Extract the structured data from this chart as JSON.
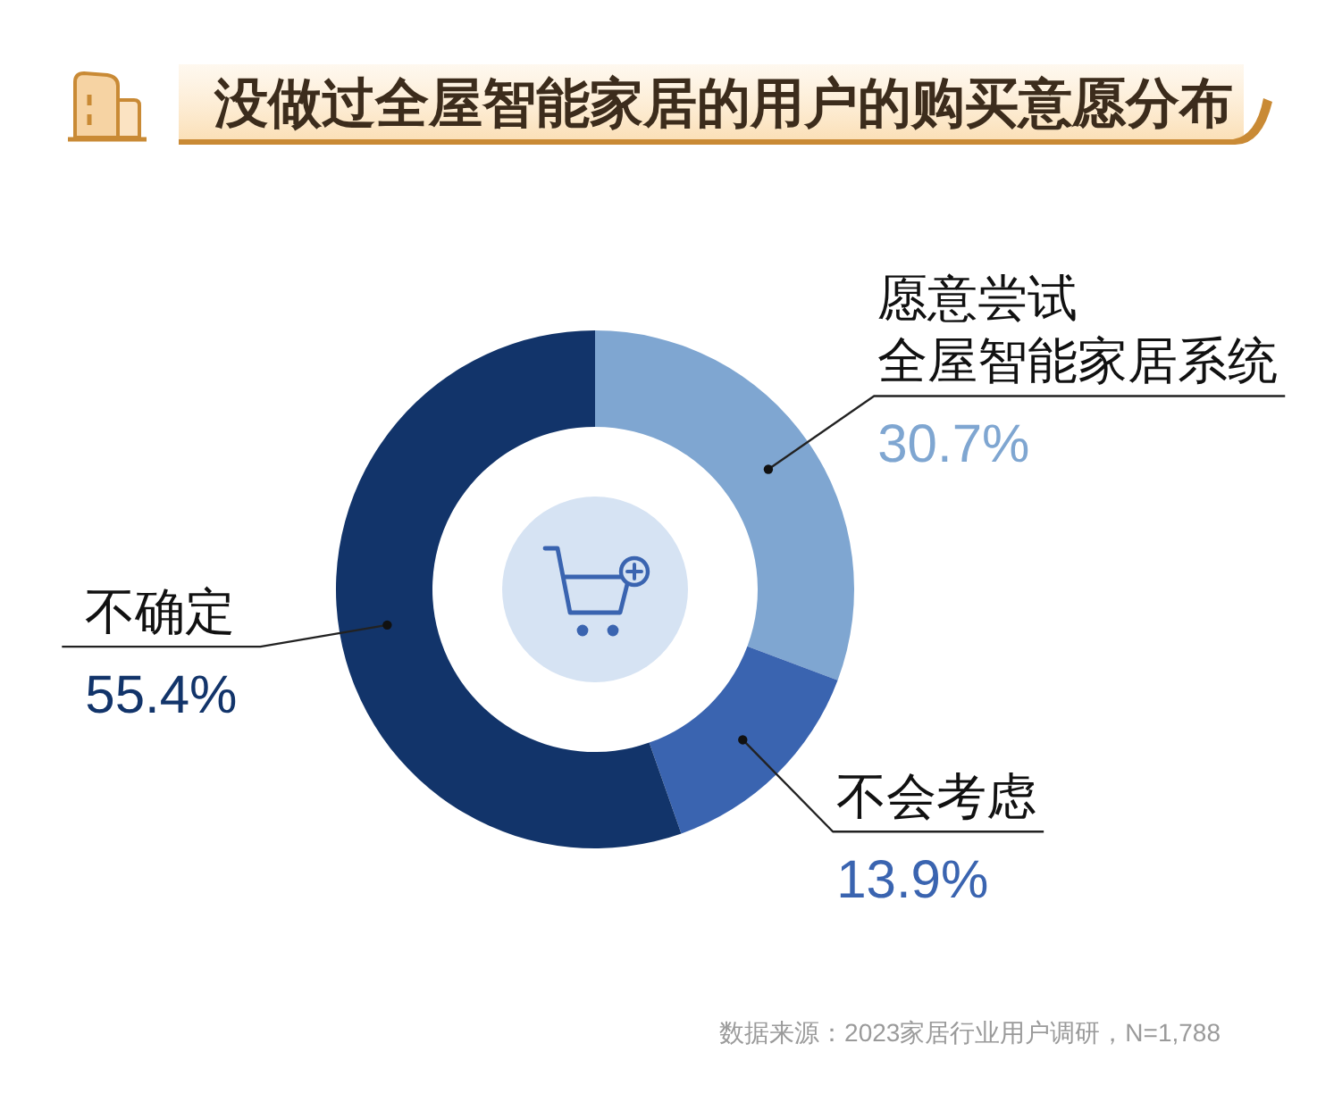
{
  "chart_data": {
    "type": "donut",
    "title": "没做过全屋智能家居的用户的购买意愿分布",
    "categories": [
      "愿意尝试全屋智能家居系统",
      "不会考虑",
      "不确定"
    ],
    "values": [
      30.7,
      13.9,
      55.4
    ],
    "colors": [
      "#7fa6d1",
      "#3a64b0",
      "#12346a"
    ],
    "value_labels": [
      "30.7%",
      "13.9%",
      "55.4%"
    ],
    "annotations": [
      "数据来源：2023家居行业用户调研，N=1,788"
    ]
  }
}
